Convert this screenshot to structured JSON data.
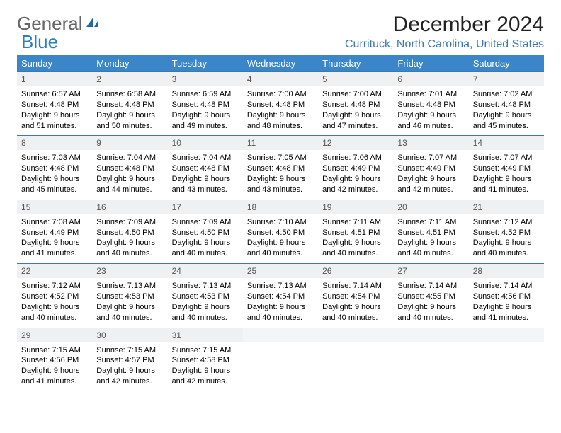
{
  "logo": {
    "part1": "General",
    "part2": "Blue"
  },
  "title": "December 2024",
  "location": "Currituck, North Carolina, United States",
  "weekdays": [
    "Sunday",
    "Monday",
    "Tuesday",
    "Wednesday",
    "Thursday",
    "Friday",
    "Saturday"
  ],
  "colors": {
    "header_bg": "#3a86c8",
    "accent": "#3a78b0",
    "daynum_bg": "#eef0f2"
  },
  "weeks": [
    [
      {
        "n": "1",
        "sunrise": "6:57 AM",
        "sunset": "4:48 PM",
        "dl": "9 hours and 51 minutes."
      },
      {
        "n": "2",
        "sunrise": "6:58 AM",
        "sunset": "4:48 PM",
        "dl": "9 hours and 50 minutes."
      },
      {
        "n": "3",
        "sunrise": "6:59 AM",
        "sunset": "4:48 PM",
        "dl": "9 hours and 49 minutes."
      },
      {
        "n": "4",
        "sunrise": "7:00 AM",
        "sunset": "4:48 PM",
        "dl": "9 hours and 48 minutes."
      },
      {
        "n": "5",
        "sunrise": "7:00 AM",
        "sunset": "4:48 PM",
        "dl": "9 hours and 47 minutes."
      },
      {
        "n": "6",
        "sunrise": "7:01 AM",
        "sunset": "4:48 PM",
        "dl": "9 hours and 46 minutes."
      },
      {
        "n": "7",
        "sunrise": "7:02 AM",
        "sunset": "4:48 PM",
        "dl": "9 hours and 45 minutes."
      }
    ],
    [
      {
        "n": "8",
        "sunrise": "7:03 AM",
        "sunset": "4:48 PM",
        "dl": "9 hours and 45 minutes."
      },
      {
        "n": "9",
        "sunrise": "7:04 AM",
        "sunset": "4:48 PM",
        "dl": "9 hours and 44 minutes."
      },
      {
        "n": "10",
        "sunrise": "7:04 AM",
        "sunset": "4:48 PM",
        "dl": "9 hours and 43 minutes."
      },
      {
        "n": "11",
        "sunrise": "7:05 AM",
        "sunset": "4:48 PM",
        "dl": "9 hours and 43 minutes."
      },
      {
        "n": "12",
        "sunrise": "7:06 AM",
        "sunset": "4:49 PM",
        "dl": "9 hours and 42 minutes."
      },
      {
        "n": "13",
        "sunrise": "7:07 AM",
        "sunset": "4:49 PM",
        "dl": "9 hours and 42 minutes."
      },
      {
        "n": "14",
        "sunrise": "7:07 AM",
        "sunset": "4:49 PM",
        "dl": "9 hours and 41 minutes."
      }
    ],
    [
      {
        "n": "15",
        "sunrise": "7:08 AM",
        "sunset": "4:49 PM",
        "dl": "9 hours and 41 minutes."
      },
      {
        "n": "16",
        "sunrise": "7:09 AM",
        "sunset": "4:50 PM",
        "dl": "9 hours and 40 minutes."
      },
      {
        "n": "17",
        "sunrise": "7:09 AM",
        "sunset": "4:50 PM",
        "dl": "9 hours and 40 minutes."
      },
      {
        "n": "18",
        "sunrise": "7:10 AM",
        "sunset": "4:50 PM",
        "dl": "9 hours and 40 minutes."
      },
      {
        "n": "19",
        "sunrise": "7:11 AM",
        "sunset": "4:51 PM",
        "dl": "9 hours and 40 minutes."
      },
      {
        "n": "20",
        "sunrise": "7:11 AM",
        "sunset": "4:51 PM",
        "dl": "9 hours and 40 minutes."
      },
      {
        "n": "21",
        "sunrise": "7:12 AM",
        "sunset": "4:52 PM",
        "dl": "9 hours and 40 minutes."
      }
    ],
    [
      {
        "n": "22",
        "sunrise": "7:12 AM",
        "sunset": "4:52 PM",
        "dl": "9 hours and 40 minutes."
      },
      {
        "n": "23",
        "sunrise": "7:13 AM",
        "sunset": "4:53 PM",
        "dl": "9 hours and 40 minutes."
      },
      {
        "n": "24",
        "sunrise": "7:13 AM",
        "sunset": "4:53 PM",
        "dl": "9 hours and 40 minutes."
      },
      {
        "n": "25",
        "sunrise": "7:13 AM",
        "sunset": "4:54 PM",
        "dl": "9 hours and 40 minutes."
      },
      {
        "n": "26",
        "sunrise": "7:14 AM",
        "sunset": "4:54 PM",
        "dl": "9 hours and 40 minutes."
      },
      {
        "n": "27",
        "sunrise": "7:14 AM",
        "sunset": "4:55 PM",
        "dl": "9 hours and 40 minutes."
      },
      {
        "n": "28",
        "sunrise": "7:14 AM",
        "sunset": "4:56 PM",
        "dl": "9 hours and 41 minutes."
      }
    ],
    [
      {
        "n": "29",
        "sunrise": "7:15 AM",
        "sunset": "4:56 PM",
        "dl": "9 hours and 41 minutes."
      },
      {
        "n": "30",
        "sunrise": "7:15 AM",
        "sunset": "4:57 PM",
        "dl": "9 hours and 42 minutes."
      },
      {
        "n": "31",
        "sunrise": "7:15 AM",
        "sunset": "4:58 PM",
        "dl": "9 hours and 42 minutes."
      },
      {
        "empty": true
      },
      {
        "empty": true
      },
      {
        "empty": true
      },
      {
        "empty": true
      }
    ]
  ],
  "labels": {
    "sunrise": "Sunrise: ",
    "sunset": "Sunset: ",
    "daylight": "Daylight: "
  }
}
